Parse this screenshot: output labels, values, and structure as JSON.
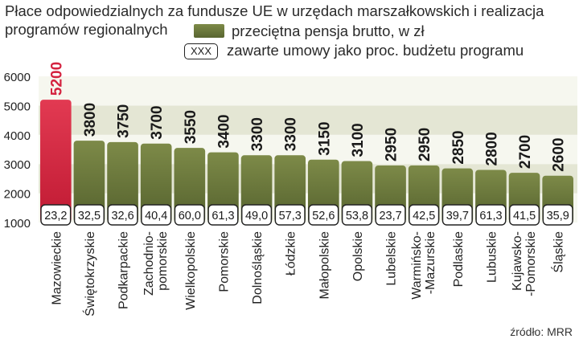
{
  "title": "Płace odpowiedzialnych za fundusze UE w urzędach marszałkowskich i realizacja programów regionalnych",
  "legend": {
    "bar_label": "przeciętna pensja brutto, w zł",
    "box_sample": "XXX",
    "box_label": "zawarte umowy jako proc. budżetu programu"
  },
  "source": "źródło: MRR",
  "colors": {
    "bar": "#6b7a3a",
    "highlight": "#d4223f",
    "band": "#e4e6d4"
  },
  "chart_data": {
    "type": "bar",
    "title": "Płace odpowiedzialnych za fundusze UE w urzędach marszałkowskich i realizacja programów regionalnych",
    "ylim": [
      1000,
      6000
    ],
    "yticks": [
      1000,
      2000,
      3000,
      4000,
      5000,
      6000
    ],
    "categories": [
      "Mazowieckie",
      "Świętokrzyskie",
      "Podkarpackie",
      "Zachodnio-\npomorskie",
      "Wielkopolskie",
      "Pomorskie",
      "Dolnośląskie",
      "Łódzkie",
      "Małopolskie",
      "Opolskie",
      "Lubelskie",
      "Warmińsko-\n-Mazurskie",
      "Podlaskie",
      "Lubuskie",
      "Kujawsko-\n-Pomorskie",
      "Śląskie"
    ],
    "series": [
      {
        "name": "przeciętna pensja brutto, w zł",
        "values": [
          5200,
          3800,
          3750,
          3700,
          3550,
          3400,
          3300,
          3300,
          3150,
          3100,
          2950,
          2950,
          2850,
          2800,
          2700,
          2600
        ],
        "labels": [
          "5200",
          "3800",
          "3750",
          "3700",
          "3550",
          "3400",
          "3300",
          "3300",
          "3150",
          "3100",
          "2950",
          "2950",
          "2850",
          "2800",
          "2700",
          "2600"
        ]
      },
      {
        "name": "zawarte umowy jako proc. budżetu programu",
        "values": [
          23.2,
          32.5,
          32.6,
          40.4,
          60.0,
          61.3,
          49.0,
          57.3,
          52.6,
          53.8,
          23.7,
          42.5,
          39.7,
          61.3,
          41.5,
          35.9
        ],
        "labels": [
          "23,2",
          "32,5",
          "32,6",
          "40,4",
          "60,0",
          "61,3",
          "49,0",
          "57,3",
          "52,6",
          "53,8",
          "23,7",
          "42,5",
          "39,7",
          "61,3",
          "41,5",
          "35,9"
        ]
      }
    ],
    "highlight_category": "Mazowieckie"
  }
}
